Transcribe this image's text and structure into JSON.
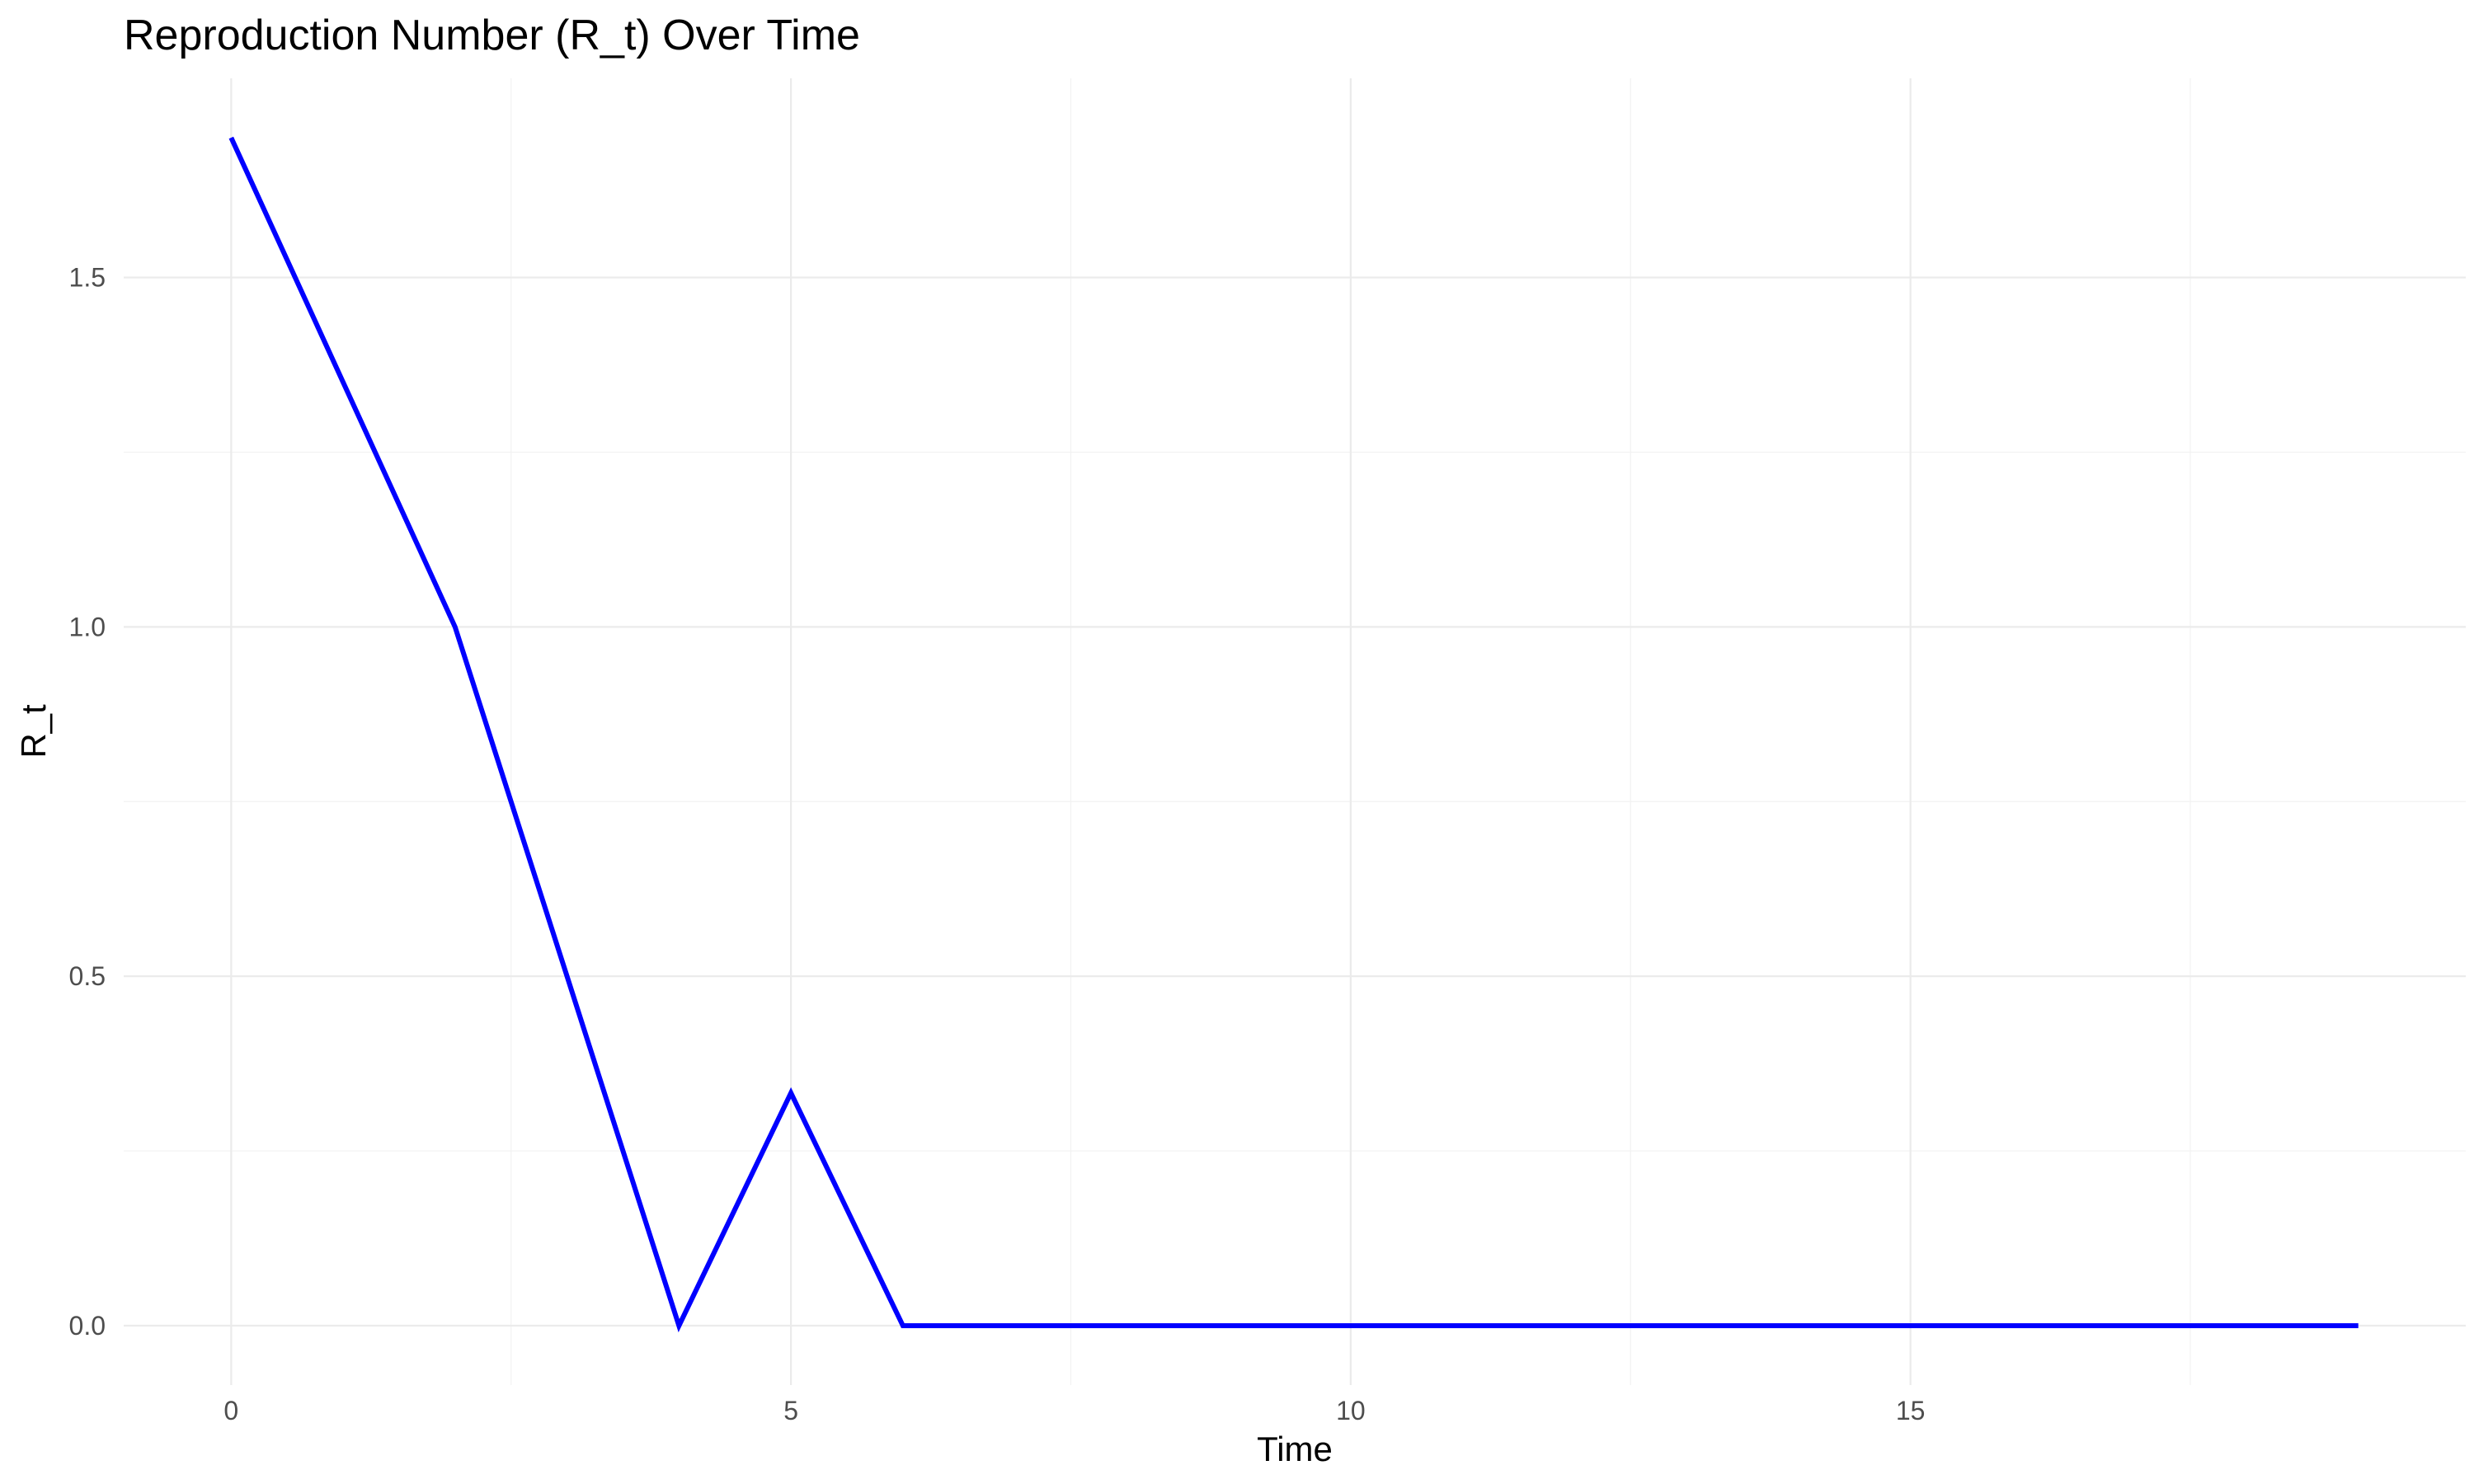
{
  "chart_data": {
    "type": "line",
    "title": "Reproduction Number (R_t) Over Time",
    "xlabel": "Time",
    "ylabel": "R_t",
    "x_ticks": [
      0,
      5,
      10,
      15
    ],
    "x_tick_labels": [
      "0",
      "5",
      "10",
      "15"
    ],
    "y_ticks": [
      0.0,
      0.5,
      1.0,
      1.5
    ],
    "y_tick_labels": [
      "0.0",
      "0.5",
      "1.0",
      "1.5"
    ],
    "xlim": [
      -0.96,
      19.96
    ],
    "ylim": [
      -0.085,
      1.785
    ],
    "grid": true,
    "legend": "none",
    "series": [
      {
        "color": "#0000ff",
        "x": [
          0,
          1,
          2,
          3,
          4,
          5,
          6,
          7,
          8,
          9,
          10,
          11,
          12,
          13,
          14,
          15,
          16,
          17,
          18,
          19
        ],
        "y": [
          1.7,
          1.35,
          1.0,
          0.5,
          0.0,
          0.333,
          0.0,
          0.0,
          0.0,
          0.0,
          0.0,
          0.0,
          0.0,
          0.0,
          0.0,
          0.0,
          0.0,
          0.0,
          0.0,
          0.0
        ]
      }
    ]
  }
}
